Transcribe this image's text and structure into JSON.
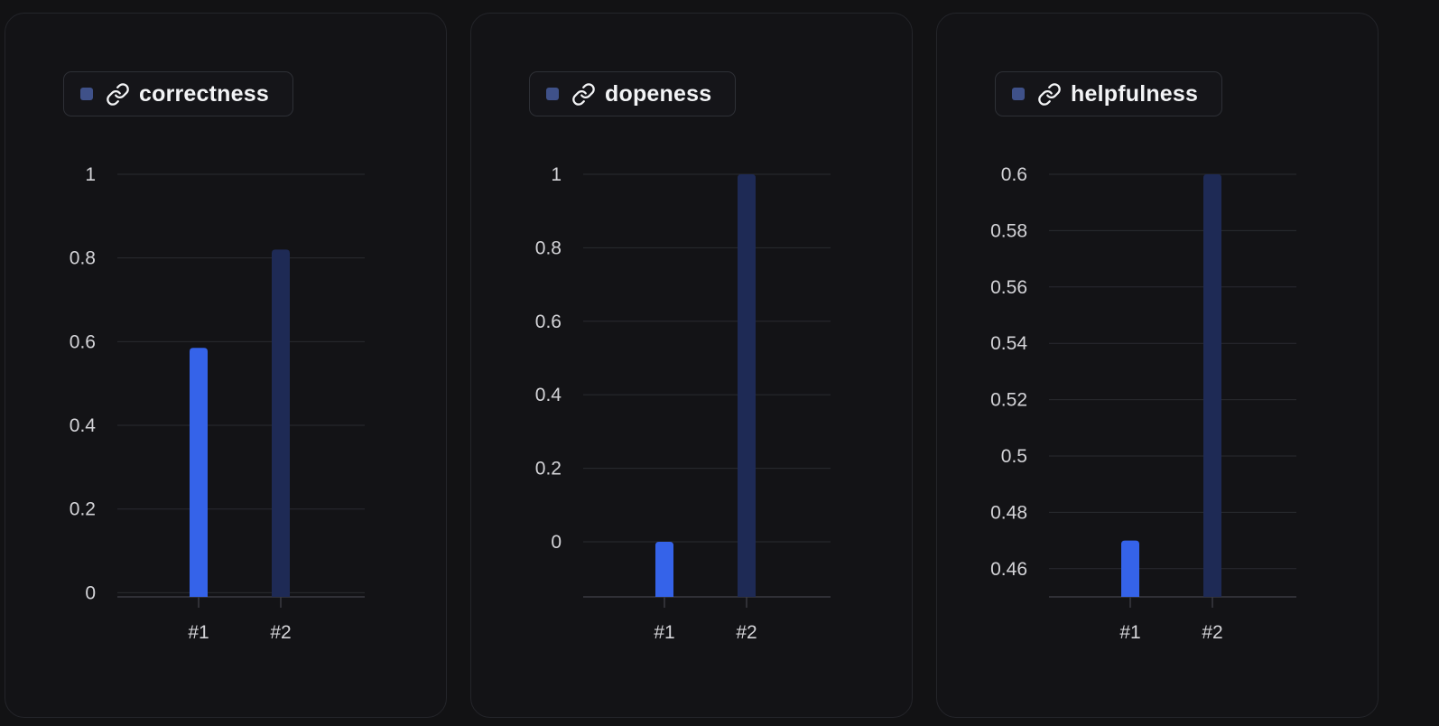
{
  "colors": {
    "background": "#121214",
    "panel_border": "#24252a",
    "bar_primary": "#3563e9",
    "bar_secondary": "#1e2a55",
    "legend_swatch": "#3f5189",
    "gridline": "#2a2b30",
    "tick_text": "#d4d4d8"
  },
  "chart_data": [
    {
      "type": "bar",
      "title": "correctness",
      "legend_icon": "link-icon",
      "categories": [
        "#1",
        "#2"
      ],
      "values": [
        0.585,
        0.82
      ],
      "yticks": [
        0,
        0.2,
        0.4,
        0.6,
        0.8,
        1
      ],
      "ytick_labels": [
        "0",
        "0.2",
        "0.4",
        "0.6",
        "0.8",
        "1"
      ],
      "ylim": [
        -0.01,
        1
      ],
      "grid": true,
      "legend_position": "top-left"
    },
    {
      "type": "bar",
      "title": "dopeness",
      "legend_icon": "link-icon",
      "categories": [
        "#1",
        "#2"
      ],
      "values": [
        0,
        1
      ],
      "yticks": [
        0,
        0.2,
        0.4,
        0.6,
        0.8,
        1
      ],
      "ytick_labels": [
        "0",
        "0.2",
        "0.4",
        "0.6",
        "0.8",
        "1"
      ],
      "ylim": [
        -0.15,
        1
      ],
      "grid": true,
      "legend_position": "top-left"
    },
    {
      "type": "bar",
      "title": "helpfulness",
      "legend_icon": "link-icon",
      "categories": [
        "#1",
        "#2"
      ],
      "values": [
        0.47,
        0.6
      ],
      "yticks": [
        0.46,
        0.48,
        0.5,
        0.52,
        0.54,
        0.56,
        0.58,
        0.6
      ],
      "ytick_labels": [
        "0.46",
        "0.48",
        "0.5",
        "0.52",
        "0.54",
        "0.56",
        "0.58",
        "0.6"
      ],
      "ylim": [
        0.45,
        0.6
      ],
      "grid": true,
      "legend_position": "top-left"
    }
  ]
}
